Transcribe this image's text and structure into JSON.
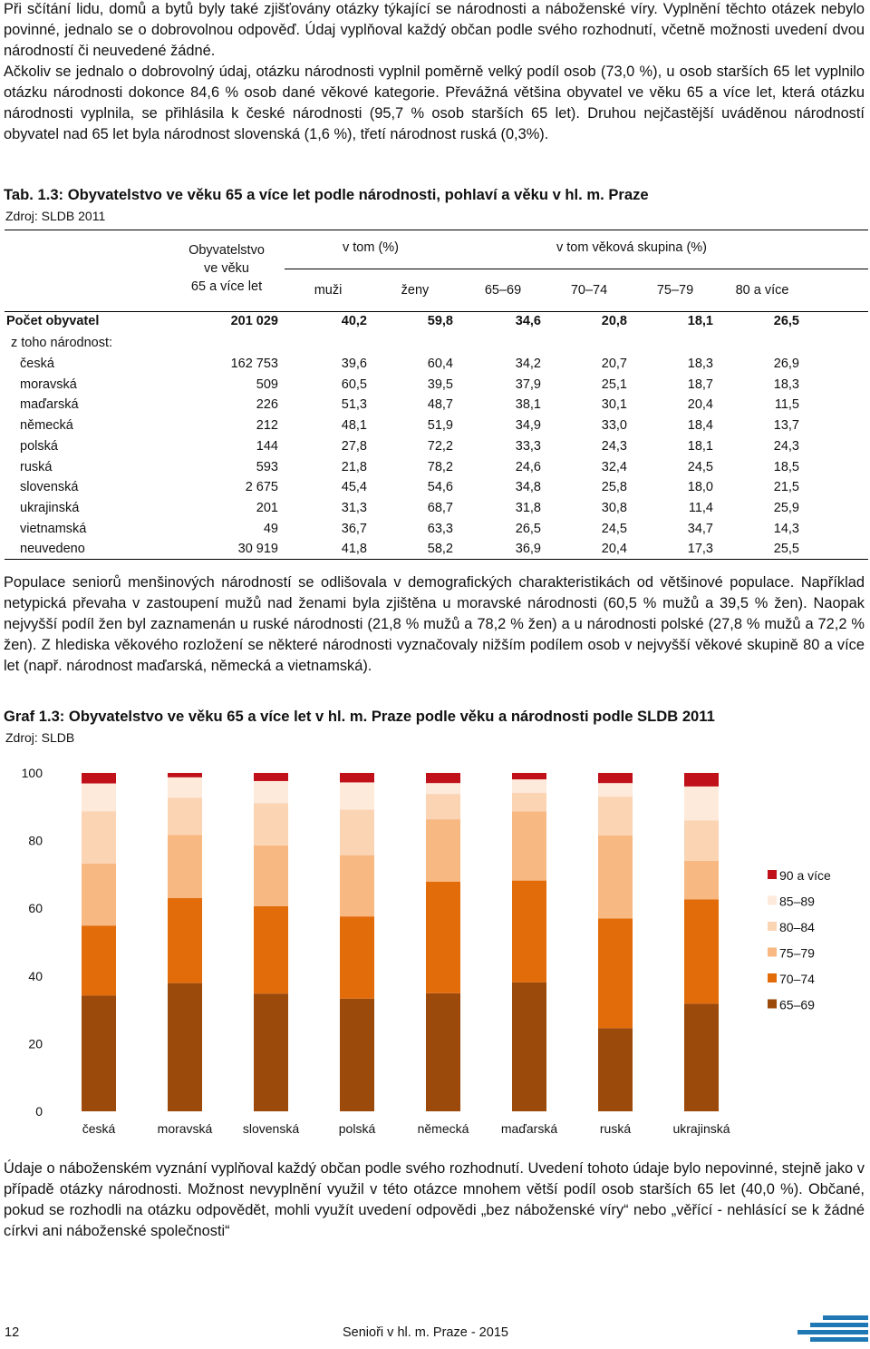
{
  "intro_paragraphs": [
    "Při sčítání lidu, domů a bytů byly také zjišťovány otázky týkající se národnosti a náboženské víry. Vyplnění těchto otázek nebylo povinné, jednalo se o dobrovolnou odpověď. Údaj vyplňoval každý občan podle svého rozhodnutí, včetně možnosti uvedení dvou národností či neuvedené žádné.",
    "Ačkoliv se jednalo o dobrovolný údaj, otázku národnosti vyplnil poměrně velký podíl osob (73,0 %), u osob starších 65 let vyplnilo otázku národnosti dokonce 84,6 % osob dané věkové kategorie. Převážná většina obyvatel ve věku 65 a více let, která otázku národnosti vyplnila, se přihlásila k české národnosti (95,7 % osob starších 65 let). Druhou nejčastější uváděnou národností obyvatel nad 65 let byla národnost slovenská (1,6 %), třetí národnost ruská (0,3%)."
  ],
  "table": {
    "title": "Tab. 1.3: Obyvatelstvo ve věku 65 a více let podle národnosti, pohlaví a věku v hl. m. Praze",
    "source": "Zdroj: SLDB 2011",
    "col_population": [
      "Obyvatelstvo",
      "ve věku",
      "65 a více let"
    ],
    "group_share": "v tom (%)",
    "group_age": "v tom věková skupina (%)",
    "sub_headers": [
      "muži",
      "ženy",
      "65–69",
      "70–74",
      "75–79",
      "80 a více"
    ],
    "total_row": {
      "label": "Počet obyvatel",
      "values": [
        "201 029",
        "40,2",
        "59,8",
        "34,6",
        "20,8",
        "18,1",
        "26,5"
      ]
    },
    "subheading": "z toho národnost:",
    "rows": [
      {
        "label": "česká",
        "values": [
          "162 753",
          "39,6",
          "60,4",
          "34,2",
          "20,7",
          "18,3",
          "26,9"
        ]
      },
      {
        "label": "moravská",
        "values": [
          "509",
          "60,5",
          "39,5",
          "37,9",
          "25,1",
          "18,7",
          "18,3"
        ]
      },
      {
        "label": "maďarská",
        "values": [
          "226",
          "51,3",
          "48,7",
          "38,1",
          "30,1",
          "20,4",
          "11,5"
        ]
      },
      {
        "label": "německá",
        "values": [
          "212",
          "48,1",
          "51,9",
          "34,9",
          "33,0",
          "18,4",
          "13,7"
        ]
      },
      {
        "label": "polská",
        "values": [
          "144",
          "27,8",
          "72,2",
          "33,3",
          "24,3",
          "18,1",
          "24,3"
        ]
      },
      {
        "label": "ruská",
        "values": [
          "593",
          "21,8",
          "78,2",
          "24,6",
          "32,4",
          "24,5",
          "18,5"
        ]
      },
      {
        "label": "slovenská",
        "values": [
          "2 675",
          "45,4",
          "54,6",
          "34,8",
          "25,8",
          "18,0",
          "21,5"
        ]
      },
      {
        "label": "ukrajinská",
        "values": [
          "201",
          "31,3",
          "68,7",
          "31,8",
          "30,8",
          "11,4",
          "25,9"
        ]
      },
      {
        "label": "vietnamská",
        "values": [
          "49",
          "36,7",
          "63,3",
          "26,5",
          "24,5",
          "34,7",
          "14,3"
        ]
      },
      {
        "label": "neuvedeno",
        "values": [
          "30 919",
          "41,8",
          "58,2",
          "36,9",
          "20,4",
          "17,3",
          "25,5"
        ]
      }
    ]
  },
  "middle_paragraph": "Populace seniorů menšinových národností se odlišovala v demografických charakteristikách od většinové populace. Například netypická převaha v zastoupení mužů nad ženami byla zjištěna u moravské národnosti (60,5 % mužů a 39,5 % žen). Naopak nejvyšší podíl žen byl zaznamenán u ruské národnosti (21,8 % mužů a 78,2 % žen) a u národnosti polské (27,8 % mužů a 72,2 % žen). Z hlediska věkového rozložení se některé národnosti vyznačovaly nižším podílem osob v nejvyšší věkové skupině 80 a více let (např. národnost maďarská, německá a vietnamská).",
  "chart_title": "Graf 1.3: Obyvatelstvo ve věku 65 a více let v hl. m. Praze podle věku a národnosti podle SLDB 2011",
  "chart_source": "Zdroj: SLDB",
  "chart_data": {
    "type": "bar",
    "stacked": true,
    "categories": [
      "česká",
      "moravská",
      "slovenská",
      "polská",
      "německá",
      "maďarská",
      "ruská",
      "ukrajinská"
    ],
    "ylim": [
      0,
      100
    ],
    "yticks": [
      0,
      20,
      40,
      60,
      80,
      100
    ],
    "legend_position": "right",
    "series": [
      {
        "name": "65–69",
        "color": "#9c4a0c",
        "values": [
          34.2,
          37.9,
          34.8,
          33.3,
          34.9,
          38.1,
          24.6,
          31.8
        ]
      },
      {
        "name": "70–74",
        "color": "#e36c0a",
        "values": [
          20.7,
          25.1,
          25.8,
          24.3,
          33.0,
          30.1,
          32.4,
          30.8
        ]
      },
      {
        "name": "75–79",
        "color": "#f7b882",
        "values": [
          18.3,
          18.7,
          18.0,
          18.1,
          18.4,
          20.4,
          24.5,
          11.4
        ]
      },
      {
        "name": "80–84",
        "color": "#fbd4b4",
        "values": [
          15.5,
          11.0,
          12.5,
          13.5,
          7.5,
          5.5,
          11.5,
          12.0
        ]
      },
      {
        "name": "85–89",
        "color": "#fdeadb",
        "values": [
          8.2,
          6.0,
          6.5,
          8.0,
          3.2,
          4.0,
          4.0,
          10.0
        ]
      },
      {
        "name": "90 a více",
        "color": "#c0101a",
        "values": [
          3.1,
          1.3,
          2.4,
          2.8,
          3.0,
          1.9,
          3.0,
          4.0
        ]
      }
    ]
  },
  "closing_paragraph": "Údaje o náboženském vyznání vyplňoval každý občan podle svého rozhodnutí. Uvedení tohoto údaje bylo nepovinné, stejně jako v případě otázky národnosti. Možnost nevyplnění využil v této otázce mnohem větší podíl osob starších 65 let (40,0 %). Občané, pokud se rozhodli na otázku odpovědět, mohli využít uvedení odpovědi „bez náboženské víry“ nebo „věřící - nehlásící se k žádné církvi ani náboženské společnosti“",
  "footer": {
    "page_number": "12",
    "publication": "Senioři v hl. m. Praze - 2015"
  },
  "colors": {
    "logo": "#1f77b4"
  }
}
